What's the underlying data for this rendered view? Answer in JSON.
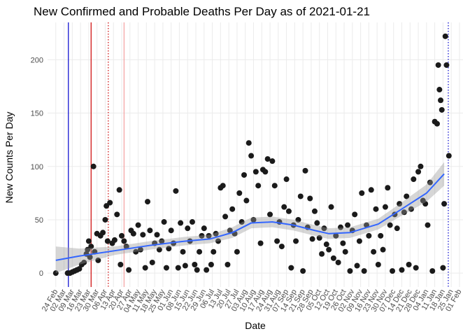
{
  "chart_data": {
    "type": "scatter",
    "title": "New Confirmed and Probable Deaths Per Day as of 2021-01-21",
    "xlabel": "Date",
    "ylabel": "New Counts Per Day",
    "color": "#1a1a1a",
    "grid": true,
    "x": [
      0,
      10,
      12,
      14,
      16,
      18,
      20,
      22,
      24,
      26,
      27,
      28,
      29,
      30,
      32,
      33,
      35,
      36,
      38,
      40,
      42,
      43,
      44,
      46,
      48,
      50,
      52,
      54,
      55,
      56,
      58,
      60,
      62,
      64,
      66,
      68,
      70,
      72,
      74,
      76,
      78,
      80,
      82,
      84,
      86,
      88,
      90,
      92,
      94,
      96,
      98,
      100,
      102,
      104,
      106,
      108,
      110,
      112,
      114,
      116,
      118,
      120,
      122,
      124,
      126,
      128,
      130,
      132,
      134,
      136,
      138,
      140,
      142,
      144,
      146,
      148,
      150,
      152,
      154,
      156,
      158,
      160,
      162,
      164,
      166,
      168,
      170,
      172,
      174,
      176,
      178,
      180,
      182,
      184,
      186,
      188,
      190,
      192,
      194,
      196,
      198,
      200,
      202,
      204,
      206,
      208,
      210,
      212,
      214,
      216,
      218,
      220,
      222,
      224,
      226,
      228,
      230,
      232,
      234,
      236,
      238,
      240,
      242,
      244,
      246,
      248,
      250,
      252,
      254,
      256,
      258,
      260,
      262,
      264,
      266,
      268,
      270,
      272,
      274,
      276,
      278,
      280,
      282,
      284,
      286,
      288,
      290,
      292,
      294,
      296,
      298,
      300,
      302,
      304,
      306,
      308,
      310,
      312,
      314,
      316,
      318,
      320,
      322,
      324,
      325,
      326,
      327,
      328,
      329,
      330,
      331,
      332,
      334
    ],
    "values": [
      0,
      0,
      0,
      1,
      2,
      3,
      4,
      8,
      10,
      18,
      22,
      30,
      15,
      25,
      100,
      20,
      37,
      12,
      35,
      38,
      50,
      63,
      30,
      66,
      28,
      31,
      55,
      78,
      8,
      35,
      30,
      25,
      3,
      40,
      37,
      20,
      45,
      22,
      36,
      5,
      67,
      40,
      10,
      28,
      36,
      22,
      30,
      48,
      5,
      23,
      40,
      28,
      77,
      5,
      47,
      20,
      7,
      42,
      30,
      48,
      8,
      3,
      20,
      35,
      42,
      3,
      35,
      8,
      20,
      37,
      30,
      80,
      82,
      53,
      8,
      40,
      60,
      37,
      20,
      75,
      48,
      92,
      68,
      122,
      110,
      50,
      95,
      82,
      28,
      97,
      95,
      107,
      55,
      105,
      82,
      30,
      48,
      25,
      62,
      88,
      58,
      5,
      45,
      30,
      50,
      72,
      2,
      96,
      43,
      70,
      32,
      58,
      47,
      33,
      18,
      42,
      27,
      22,
      62,
      14,
      35,
      10,
      43,
      28,
      20,
      45,
      2,
      40,
      55,
      7,
      30,
      75,
      2,
      45,
      35,
      78,
      20,
      60,
      8,
      35,
      22,
      62,
      80,
      45,
      2,
      55,
      42,
      65,
      3,
      57,
      72,
      8,
      60,
      88,
      5,
      95,
      100,
      68,
      65,
      45,
      85,
      2,
      142,
      140,
      195,
      172,
      162,
      153,
      5,
      65,
      222,
      195,
      110
    ],
    "smooth": {
      "color": "#3366ff",
      "x": [
        0,
        20,
        50,
        80,
        110,
        131,
        150,
        166,
        184,
        202,
        220,
        232,
        250,
        274,
        291,
        315,
        330
      ],
      "values": [
        12,
        16,
        21,
        26,
        30,
        32,
        38,
        47,
        48,
        45,
        40,
        37,
        38,
        46,
        58,
        75,
        93
      ],
      "lower": [
        0,
        8,
        17,
        22,
        26,
        28,
        33,
        42,
        43,
        40,
        35,
        32,
        33,
        41,
        52,
        67,
        82
      ],
      "upper": [
        25,
        23,
        25,
        30,
        34,
        36,
        43,
        52,
        53,
        50,
        45,
        42,
        43,
        51,
        64,
        83,
        104
      ]
    },
    "vlines": [
      {
        "x": 10.7,
        "color": "#0000cc",
        "style": "solid"
      },
      {
        "x": 30,
        "color": "#cc0000",
        "style": "solid"
      },
      {
        "x": 44.6,
        "color": "#cc0000",
        "style": "dotted"
      },
      {
        "x": 58,
        "color": "#f4a0a0",
        "style": "solid"
      },
      {
        "x": 333.5,
        "color": "#0000cc",
        "style": "dotted"
      }
    ],
    "xlim": [
      -7,
      346
    ],
    "ylim": [
      -13,
      235
    ],
    "yticks": [
      0,
      50,
      100,
      150,
      200
    ],
    "xticks": [
      {
        "value": 0,
        "label": "24 Feb"
      },
      {
        "value": 7,
        "label": "02 Mar"
      },
      {
        "value": 14,
        "label": "09 Mar"
      },
      {
        "value": 21,
        "label": "16 Mar"
      },
      {
        "value": 28,
        "label": "23 Mar"
      },
      {
        "value": 35,
        "label": "30 Mar"
      },
      {
        "value": 42,
        "label": "06 Apr"
      },
      {
        "value": 49,
        "label": "13 Apr"
      },
      {
        "value": 56,
        "label": "20 Apr"
      },
      {
        "value": 63,
        "label": "27 Apr"
      },
      {
        "value": 70,
        "label": "04 May"
      },
      {
        "value": 77,
        "label": "11 May"
      },
      {
        "value": 84,
        "label": "18 May"
      },
      {
        "value": 91,
        "label": "25 May"
      },
      {
        "value": 98,
        "label": "01 Jun"
      },
      {
        "value": 105,
        "label": "08 Jun"
      },
      {
        "value": 112,
        "label": "15 Jun"
      },
      {
        "value": 119,
        "label": "22 Jun"
      },
      {
        "value": 126,
        "label": "29 Jun"
      },
      {
        "value": 133,
        "label": "06 Jul"
      },
      {
        "value": 140,
        "label": "13 Jul"
      },
      {
        "value": 147,
        "label": "20 Jul"
      },
      {
        "value": 154,
        "label": "27 Jul"
      },
      {
        "value": 161,
        "label": "03 Aug"
      },
      {
        "value": 168,
        "label": "10 Aug"
      },
      {
        "value": 175,
        "label": "17 Aug"
      },
      {
        "value": 182,
        "label": "24 Aug"
      },
      {
        "value": 189,
        "label": "31 Aug"
      },
      {
        "value": 196,
        "label": "07 Sep"
      },
      {
        "value": 203,
        "label": "14 Sep"
      },
      {
        "value": 210,
        "label": "21 Sep"
      },
      {
        "value": 217,
        "label": "28 Sep"
      },
      {
        "value": 224,
        "label": "05 Oct"
      },
      {
        "value": 231,
        "label": "12 Oct"
      },
      {
        "value": 238,
        "label": "19 Oct"
      },
      {
        "value": 245,
        "label": "26 Oct"
      },
      {
        "value": 252,
        "label": "02 Nov"
      },
      {
        "value": 259,
        "label": "09 Nov"
      },
      {
        "value": 266,
        "label": "16 Nov"
      },
      {
        "value": 273,
        "label": "23 Nov"
      },
      {
        "value": 280,
        "label": "30 Nov"
      },
      {
        "value": 287,
        "label": "07 Dec"
      },
      {
        "value": 294,
        "label": "14 Dec"
      },
      {
        "value": 301,
        "label": "21 Dec"
      },
      {
        "value": 308,
        "label": "28 Dec"
      },
      {
        "value": 315,
        "label": "04 Jan"
      },
      {
        "value": 322,
        "label": "11 Jan"
      },
      {
        "value": 329,
        "label": "18 Jan"
      },
      {
        "value": 336,
        "label": "25 Jan"
      },
      {
        "value": 343,
        "label": "01 Feb"
      }
    ]
  }
}
